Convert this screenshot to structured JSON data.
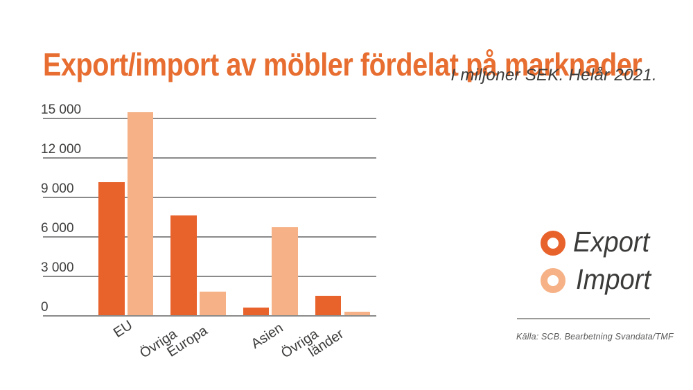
{
  "title": "Export/import av möbler fördelat på marknader",
  "subtitle": "I miljoner SEK. Helår 2021.",
  "source": "Källa: SCB. Bearbetning Svandata/TMF",
  "colors": {
    "title": "#E76E30",
    "export": "#E8622C",
    "import": "#F6B286",
    "gridline": "#8A8A8A",
    "axis_text": "#3E3E3D",
    "subtitle_text": "#3C3C3B",
    "legend_text": "#3B3B3A",
    "source_text": "#575756"
  },
  "legend": {
    "position": "right",
    "items": [
      {
        "label": "Export",
        "color": "#E8622C"
      },
      {
        "label": "Import",
        "color": "#F6B286"
      }
    ]
  },
  "chart_data": {
    "type": "bar",
    "title": "Export/import av möbler fördelat på marknader",
    "subtitle": "I miljoner SEK. Helår 2021.",
    "unit": "miljoner SEK",
    "categories": [
      "EU",
      "Övriga Europa",
      "Asien",
      "Övriga länder"
    ],
    "series": [
      {
        "name": "Export",
        "color": "#E8622C",
        "values": [
          10100,
          7600,
          600,
          1450
        ]
      },
      {
        "name": "Import",
        "color": "#F6B286",
        "values": [
          15400,
          1800,
          6700,
          250
        ]
      }
    ],
    "ylim": [
      0,
      15000
    ],
    "y_ticks": [
      {
        "value": 15000,
        "label": "15 000"
      },
      {
        "value": 12000,
        "label": "12 000"
      },
      {
        "value": 9000,
        "label": "9 000"
      },
      {
        "value": 6000,
        "label": "6 000"
      },
      {
        "value": 3000,
        "label": "3 000"
      },
      {
        "value": 0,
        "label": "0"
      }
    ],
    "grid": true,
    "legend_position": "right",
    "source": "Källa: SCB. Bearbetning Svandata/TMF"
  }
}
